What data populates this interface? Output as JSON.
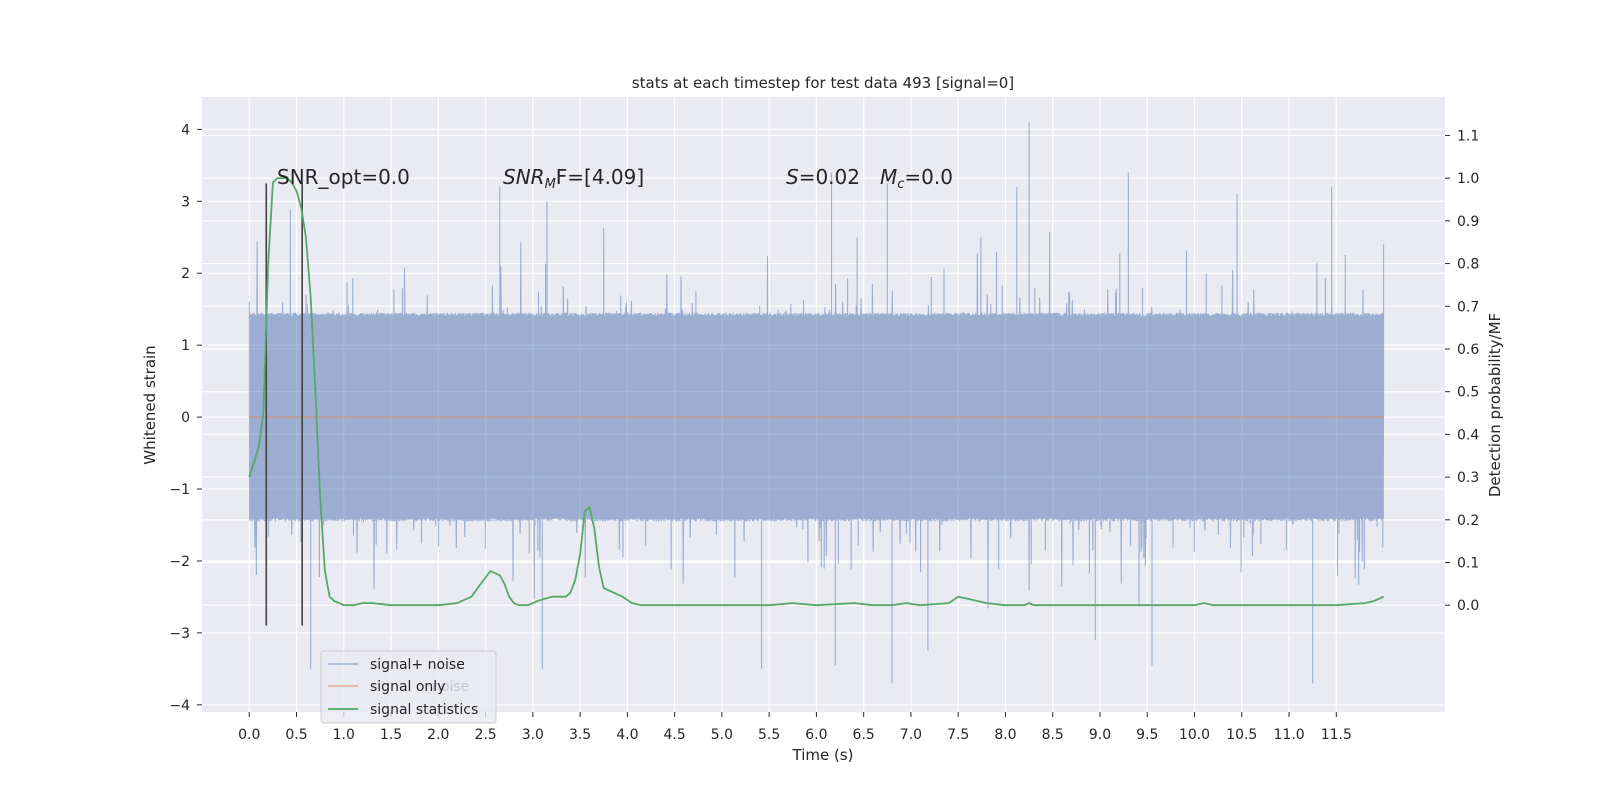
{
  "chart_data": {
    "type": "line",
    "title": "stats at each timestep for test data 493 [signal=0]",
    "xlabel": "Time (s)",
    "ylabel": "Whitened strain",
    "ylabel_right": "Detection probability/MF",
    "xlim": [
      -0.5,
      12.65
    ],
    "ylim": [
      -4.1,
      4.45
    ],
    "ylim_right": [
      -0.25,
      1.19
    ],
    "x_ticks": [
      "0.0",
      "0.5",
      "1.0",
      "1.5",
      "2.0",
      "2.5",
      "3.0",
      "3.5",
      "4.0",
      "4.5",
      "5.0",
      "5.5",
      "6.0",
      "6.5",
      "7.0",
      "7.5",
      "8.0",
      "8.5",
      "9.0",
      "9.5",
      "10.0",
      "10.5",
      "11.0",
      "11.5"
    ],
    "y_ticks": [
      4,
      3,
      2,
      1,
      0,
      -1,
      -2,
      -3,
      -4
    ],
    "y_ticks_right": [
      "1.1",
      "1.0",
      "0.9",
      "0.8",
      "0.7",
      "0.6",
      "0.5",
      "0.4",
      "0.3",
      "0.2",
      "0.1",
      "0.0"
    ],
    "y_ticks_right_values": [
      1.1,
      1.0,
      0.9,
      0.8,
      0.7,
      0.6,
      0.5,
      0.4,
      0.3,
      0.2,
      0.1,
      0.0
    ],
    "grid": true,
    "legend_position": "lower-left",
    "annotations": {
      "snr_opt": "SNR_opt=0.0",
      "snr_mf_prefix": "SNR",
      "snr_mf_sub": "M",
      "snr_mf_suffix": "F=[4.09]",
      "s_prefix": "S",
      "s_suffix": "=0.02",
      "mc_prefix": "M",
      "mc_sub": "c",
      "mc_suffix": "=0.0"
    },
    "legend_hidden_text": "noise",
    "noise_x_range": [
      0.0,
      12.0
    ],
    "noise_envelope": {
      "core": 1.4,
      "spike_max": 4.1,
      "spike_min": -3.75
    },
    "noise_spikes": [
      {
        "x": 6.16,
        "y": 3.4
      },
      {
        "x": 6.2,
        "y": -3.45
      },
      {
        "x": 6.43,
        "y": 2.5
      },
      {
        "x": 6.75,
        "y": 3.25
      },
      {
        "x": 6.8,
        "y": -3.7
      },
      {
        "x": 7.18,
        "y": -3.25
      },
      {
        "x": 8.25,
        "y": 4.1
      },
      {
        "x": 8.12,
        "y": 3.2
      },
      {
        "x": 9.3,
        "y": 3.4
      },
      {
        "x": 9.55,
        "y": -3.45
      },
      {
        "x": 10.45,
        "y": 3.1
      },
      {
        "x": 11.25,
        "y": -3.7
      },
      {
        "x": 0.65,
        "y": -3.5
      },
      {
        "x": 3.15,
        "y": 3.0
      },
      {
        "x": 3.1,
        "y": -3.5
      },
      {
        "x": 2.65,
        "y": 3.2
      },
      {
        "x": 5.42,
        "y": -3.5
      },
      {
        "x": 11.45,
        "y": 3.2
      },
      {
        "x": 12.0,
        "y": 2.4
      },
      {
        "x": 8.95,
        "y": -3.1
      }
    ],
    "series": [
      {
        "name": "signal+ noise",
        "color": "#4c72b0",
        "axis": "left",
        "kind": "noise"
      },
      {
        "name": "signal only",
        "color": "#dd8452",
        "axis": "left",
        "x": [
          0.0,
          12.0
        ],
        "y": [
          0.0,
          0.0
        ]
      },
      {
        "name": "signal statistics",
        "color": "#55a868",
        "axis": "right",
        "x": [
          0.0,
          0.1,
          0.15,
          0.2,
          0.25,
          0.3,
          0.35,
          0.4,
          0.45,
          0.5,
          0.55,
          0.6,
          0.65,
          0.7,
          0.75,
          0.8,
          0.85,
          0.9,
          1.0,
          1.1,
          1.2,
          1.3,
          1.5,
          1.7,
          2.0,
          2.2,
          2.35,
          2.45,
          2.55,
          2.65,
          2.7,
          2.75,
          2.8,
          2.85,
          2.95,
          3.05,
          3.2,
          3.35,
          3.4,
          3.45,
          3.5,
          3.55,
          3.6,
          3.65,
          3.7,
          3.75,
          3.85,
          3.95,
          4.05,
          4.15,
          4.3,
          4.6,
          5.0,
          5.5,
          5.75,
          6.0,
          6.4,
          6.6,
          6.8,
          6.95,
          7.1,
          7.4,
          7.5,
          7.6,
          7.8,
          8.0,
          8.2,
          8.25,
          8.3,
          8.5,
          9.0,
          10.0,
          10.1,
          10.2,
          10.5,
          11.0,
          11.5,
          11.8,
          11.9,
          12.0
        ],
        "y": [
          0.3,
          0.37,
          0.45,
          0.8,
          0.99,
          1.0,
          1.0,
          1.0,
          0.99,
          0.97,
          0.93,
          0.86,
          0.72,
          0.5,
          0.25,
          0.08,
          0.02,
          0.01,
          0.0,
          0.0,
          0.005,
          0.005,
          0.0,
          0.0,
          0.0,
          0.005,
          0.02,
          0.05,
          0.08,
          0.07,
          0.05,
          0.02,
          0.005,
          0.0,
          0.0,
          0.01,
          0.02,
          0.02,
          0.03,
          0.06,
          0.12,
          0.22,
          0.23,
          0.18,
          0.09,
          0.04,
          0.03,
          0.02,
          0.005,
          0.0,
          0.0,
          0.0,
          0.0,
          0.0,
          0.005,
          0.0,
          0.005,
          0.0,
          0.0,
          0.005,
          0.0,
          0.005,
          0.02,
          0.015,
          0.005,
          0.0,
          0.0,
          0.005,
          0.0,
          0.0,
          0.0,
          0.0,
          0.005,
          0.0,
          0.0,
          0.0,
          0.0,
          0.005,
          0.01,
          0.02
        ]
      }
    ],
    "vertical_lines": [
      {
        "x": 0.18,
        "y_top": 3.25,
        "y_bottom": -2.9,
        "color": "#444444"
      },
      {
        "x": 0.56,
        "y_top": 3.25,
        "y_bottom": -2.9,
        "color": "#444444"
      }
    ]
  }
}
